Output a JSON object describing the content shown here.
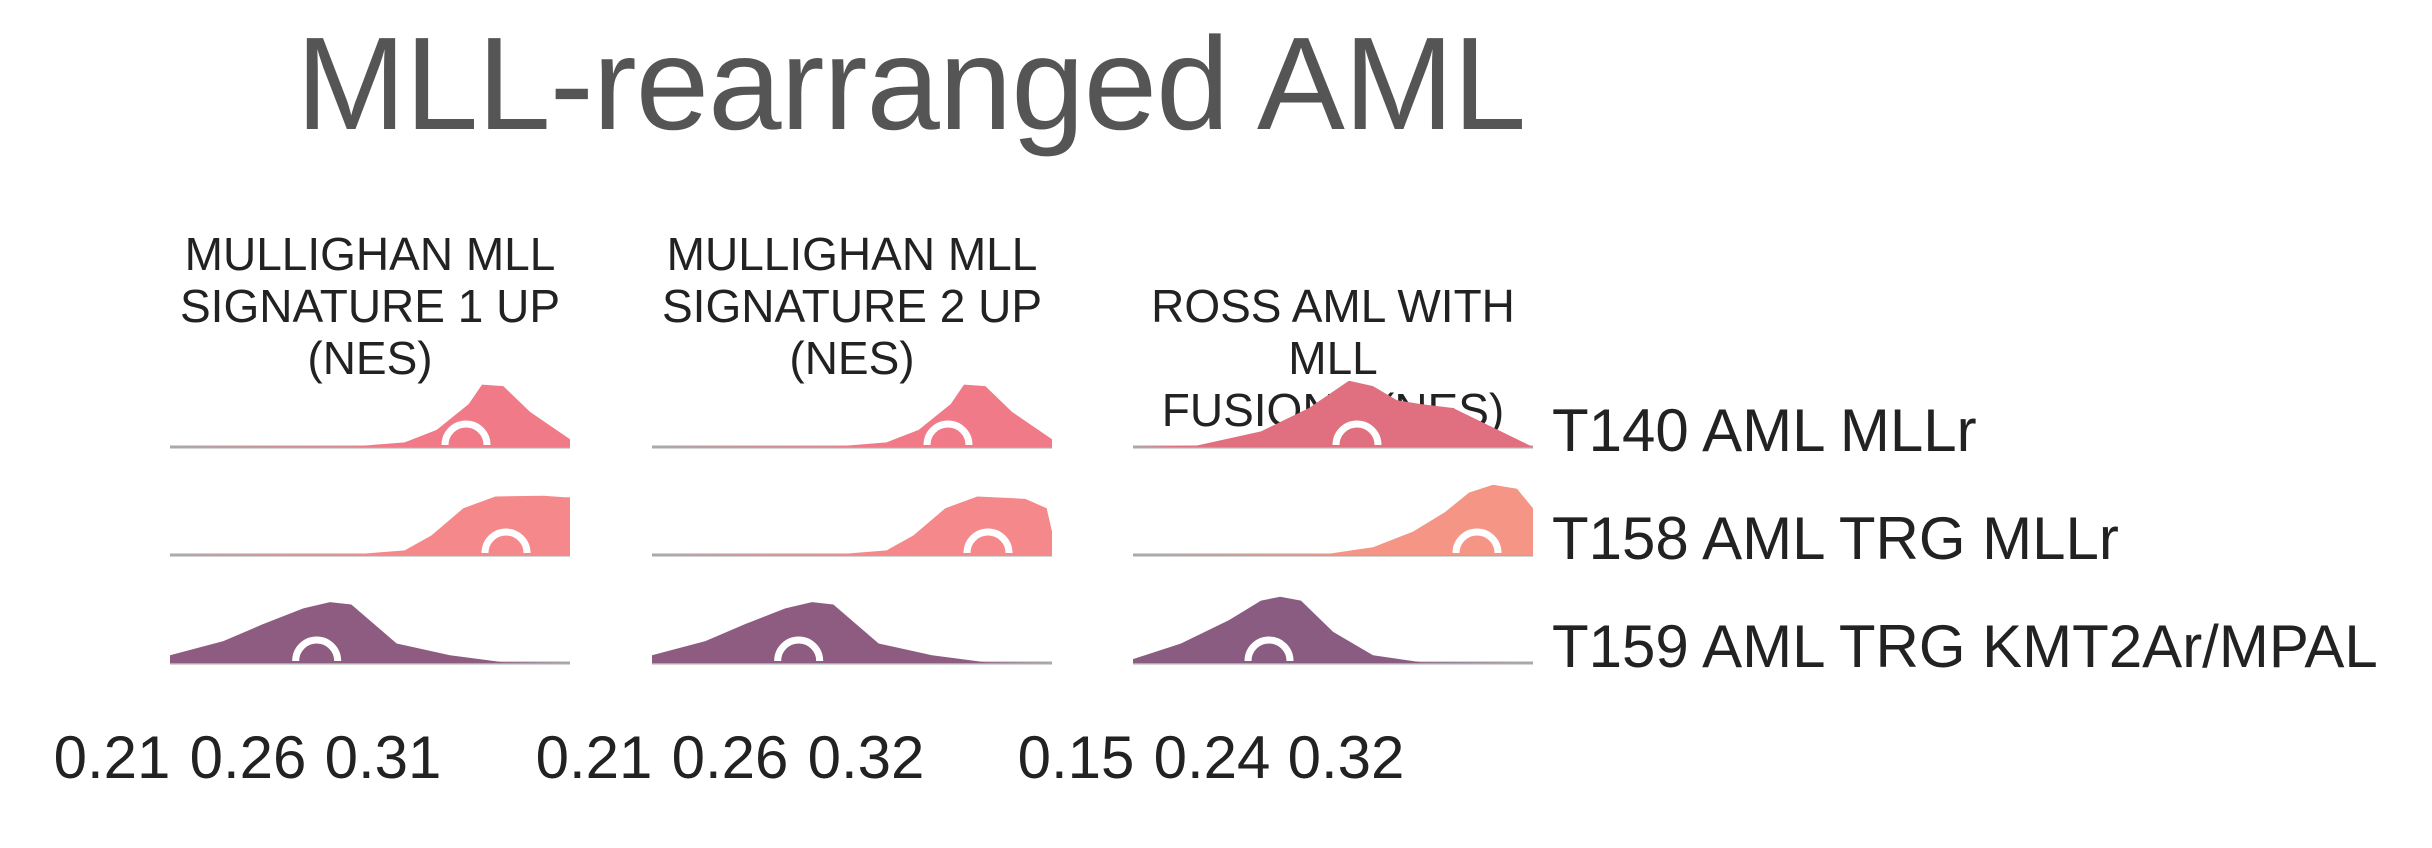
{
  "title": "MLL-rearranged AML",
  "chart_data": {
    "type": "ridgeline",
    "title": "MLL-rearranged AML",
    "rows": [
      "T140 AML MLLr",
      "T158 AML TRG MLLr",
      "T159 AML TRG KMT2Ar/MPAL"
    ],
    "row_colors": [
      "#f07a88",
      "#f5888a",
      "#8e5c80"
    ],
    "panels": [
      {
        "name": "MULLIGHAN MLL SIGNATURE 1 UP (NES)",
        "title_lines": [
          "MULLIGHAN MLL",
          "SIGNATURE 1 UP",
          "(NES)"
        ],
        "ticks": [
          "0.21",
          "0.26",
          "0.31"
        ],
        "tick_values": [
          0.21,
          0.26,
          0.31
        ],
        "xlim": [
          0.18,
          0.33
        ],
        "series": [
          {
            "row": "T140 AML MLLr",
            "color": "#f07a88",
            "marker": 0.291,
            "x": [
              0.18,
              0.25,
              0.268,
              0.28,
              0.292,
              0.297,
              0.305,
              0.315,
              0.33
            ],
            "y": [
              0,
              0.01,
              0.06,
              0.22,
              0.55,
              0.8,
              0.78,
              0.45,
              0.1
            ]
          },
          {
            "row": "T158 AML TRG MLLr",
            "color": "#f5888a",
            "marker": 0.306,
            "x": [
              0.18,
              0.25,
              0.268,
              0.278,
              0.29,
              0.302,
              0.32,
              0.328,
              0.33,
              0.33
            ],
            "y": [
              0,
              0.01,
              0.06,
              0.25,
              0.6,
              0.75,
              0.76,
              0.74,
              0.74,
              0
            ]
          },
          {
            "row": "T159 AML TRG KMT2Ar/MPAL",
            "color": "#8e5c80",
            "marker": 0.235,
            "x": [
              0.18,
              0.2,
              0.215,
              0.23,
              0.24,
              0.248,
              0.265,
              0.285,
              0.305,
              0.33
            ],
            "y": [
              0.1,
              0.28,
              0.5,
              0.7,
              0.78,
              0.75,
              0.25,
              0.1,
              0.01,
              0
            ]
          }
        ]
      },
      {
        "name": "MULLIGHAN MLL SIGNATURE 2 UP (NES)",
        "title_lines": [
          "MULLIGHAN MLL",
          "SIGNATURE 2 UP",
          "(NES)"
        ],
        "ticks": [
          "0.21",
          "0.26",
          "0.32"
        ],
        "tick_values": [
          0.21,
          0.26,
          0.32
        ],
        "xlim": [
          0.18,
          0.33
        ],
        "series": [
          {
            "row": "T140 AML MLLr",
            "color": "#f07a88",
            "marker": 0.291,
            "x": [
              0.18,
              0.25,
              0.268,
              0.28,
              0.292,
              0.297,
              0.305,
              0.315,
              0.33
            ],
            "y": [
              0,
              0.01,
              0.06,
              0.22,
              0.55,
              0.8,
              0.78,
              0.45,
              0.1
            ]
          },
          {
            "row": "T158 AML TRG MLLr",
            "color": "#f5888a",
            "marker": 0.306,
            "x": [
              0.18,
              0.25,
              0.268,
              0.278,
              0.29,
              0.302,
              0.32,
              0.328,
              0.33
            ],
            "y": [
              0,
              0.01,
              0.06,
              0.25,
              0.6,
              0.75,
              0.72,
              0.6,
              0.3
            ]
          },
          {
            "row": "T159 AML TRG KMT2Ar/MPAL",
            "color": "#8e5c80",
            "marker": 0.235,
            "x": [
              0.18,
              0.2,
              0.215,
              0.23,
              0.24,
              0.248,
              0.265,
              0.285,
              0.305,
              0.33
            ],
            "y": [
              0.1,
              0.28,
              0.5,
              0.7,
              0.78,
              0.75,
              0.25,
              0.1,
              0.01,
              0
            ]
          }
        ]
      },
      {
        "name": "ROSS AML WITH MLL FUSIONS (NES)",
        "title_lines": [
          "ROSS AML WITH MLL",
          "FUSIONS (NES)"
        ],
        "ticks": [
          "0.15",
          "0.24",
          "0.32"
        ],
        "tick_values": [
          0.15,
          0.24,
          0.32
        ],
        "xlim": [
          0.12,
          0.37
        ],
        "series": [
          {
            "row": "T140 AML MLLr",
            "color": "#e0707f",
            "marker": 0.26,
            "x": [
              0.12,
              0.16,
              0.2,
              0.23,
              0.255,
              0.27,
              0.285,
              0.3,
              0.32,
              0.345,
              0.37
            ],
            "y": [
              0,
              0.02,
              0.2,
              0.5,
              0.85,
              0.78,
              0.6,
              0.55,
              0.5,
              0.25,
              0
            ]
          },
          {
            "row": "T158 AML TRG MLLr",
            "color": "#f59585",
            "marker": 0.335,
            "x": [
              0.12,
              0.24,
              0.27,
              0.295,
              0.315,
              0.33,
              0.345,
              0.36,
              0.37
            ],
            "y": [
              0,
              0.01,
              0.1,
              0.3,
              0.55,
              0.8,
              0.9,
              0.85,
              0.6
            ]
          },
          {
            "row": "T159 AML TRG KMT2Ar/MPAL",
            "color": "#8a5c82",
            "marker": 0.205,
            "x": [
              0.12,
              0.15,
              0.18,
              0.2,
              0.212,
              0.225,
              0.245,
              0.27,
              0.3,
              0.37
            ],
            "y": [
              0.05,
              0.25,
              0.55,
              0.8,
              0.85,
              0.8,
              0.4,
              0.1,
              0.01,
              0
            ]
          }
        ]
      }
    ]
  }
}
